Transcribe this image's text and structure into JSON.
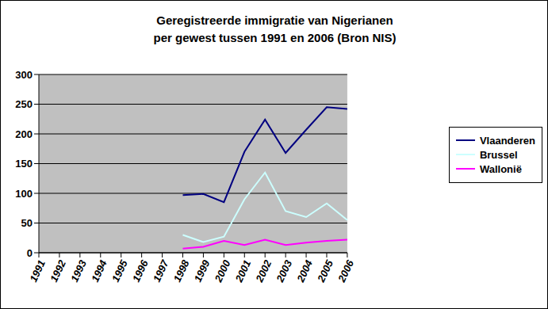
{
  "chart_data": {
    "type": "line",
    "title": "Geregistreerde immigratie van Nigerianen\nper gewest tussen 1991 en 2006 (Bron NIS)",
    "categories": [
      "1991",
      "1992",
      "1993",
      "1994",
      "1995",
      "1996",
      "1997",
      "1998",
      "1999",
      "2000",
      "2001",
      "2002",
      "2003",
      "2004",
      "2005",
      "2006"
    ],
    "series": [
      {
        "name": "Vlaanderen",
        "color": "#000080",
        "values": [
          null,
          null,
          null,
          null,
          null,
          null,
          null,
          97,
          99,
          85,
          170,
          224,
          168,
          207,
          245,
          242
        ]
      },
      {
        "name": "Brussel",
        "color": "#ccffff",
        "values": [
          null,
          null,
          null,
          null,
          null,
          null,
          null,
          30,
          18,
          27,
          90,
          135,
          70,
          60,
          83,
          55
        ]
      },
      {
        "name": "Wallonië",
        "color": "#ff00ff",
        "values": [
          null,
          null,
          null,
          null,
          null,
          null,
          null,
          7,
          10,
          20,
          13,
          22,
          13,
          17,
          20,
          22
        ]
      }
    ],
    "ylim": [
      0,
      300
    ],
    "yticks": [
      0,
      50,
      100,
      150,
      200,
      250,
      300
    ],
    "grid": true,
    "legend": "right"
  }
}
